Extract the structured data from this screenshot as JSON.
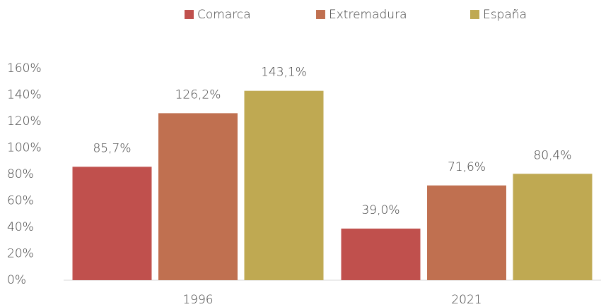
{
  "chart_data": {
    "type": "bar",
    "categories": [
      "1996",
      "2021"
    ],
    "series": [
      {
        "name": "Comarca",
        "color": "#c0504d",
        "values": [
          85.7,
          39.0
        ],
        "value_labels": [
          "85,7%",
          "39,0%"
        ]
      },
      {
        "name": "Extremadura",
        "color": "#c07050",
        "values": [
          126.2,
          71.6
        ],
        "value_labels": [
          "126,2%",
          "71,6%"
        ]
      },
      {
        "name": "España",
        "color": "#bfa952",
        "values": [
          143.1,
          80.4
        ],
        "value_labels": [
          "143,1%",
          "80,4%"
        ]
      }
    ],
    "ylim": [
      0,
      160
    ],
    "yticks": [
      {
        "value": 0,
        "label": "0%"
      },
      {
        "value": 20,
        "label": "20%"
      },
      {
        "value": 40,
        "label": "40%"
      },
      {
        "value": 60,
        "label": "60%"
      },
      {
        "value": 80,
        "label": "80%"
      },
      {
        "value": 100,
        "label": "100%"
      },
      {
        "value": 120,
        "label": "120%"
      },
      {
        "value": 140,
        "label": "140%"
      },
      {
        "value": 160,
        "label": "160%"
      }
    ],
    "grid": false,
    "legend": "top"
  }
}
